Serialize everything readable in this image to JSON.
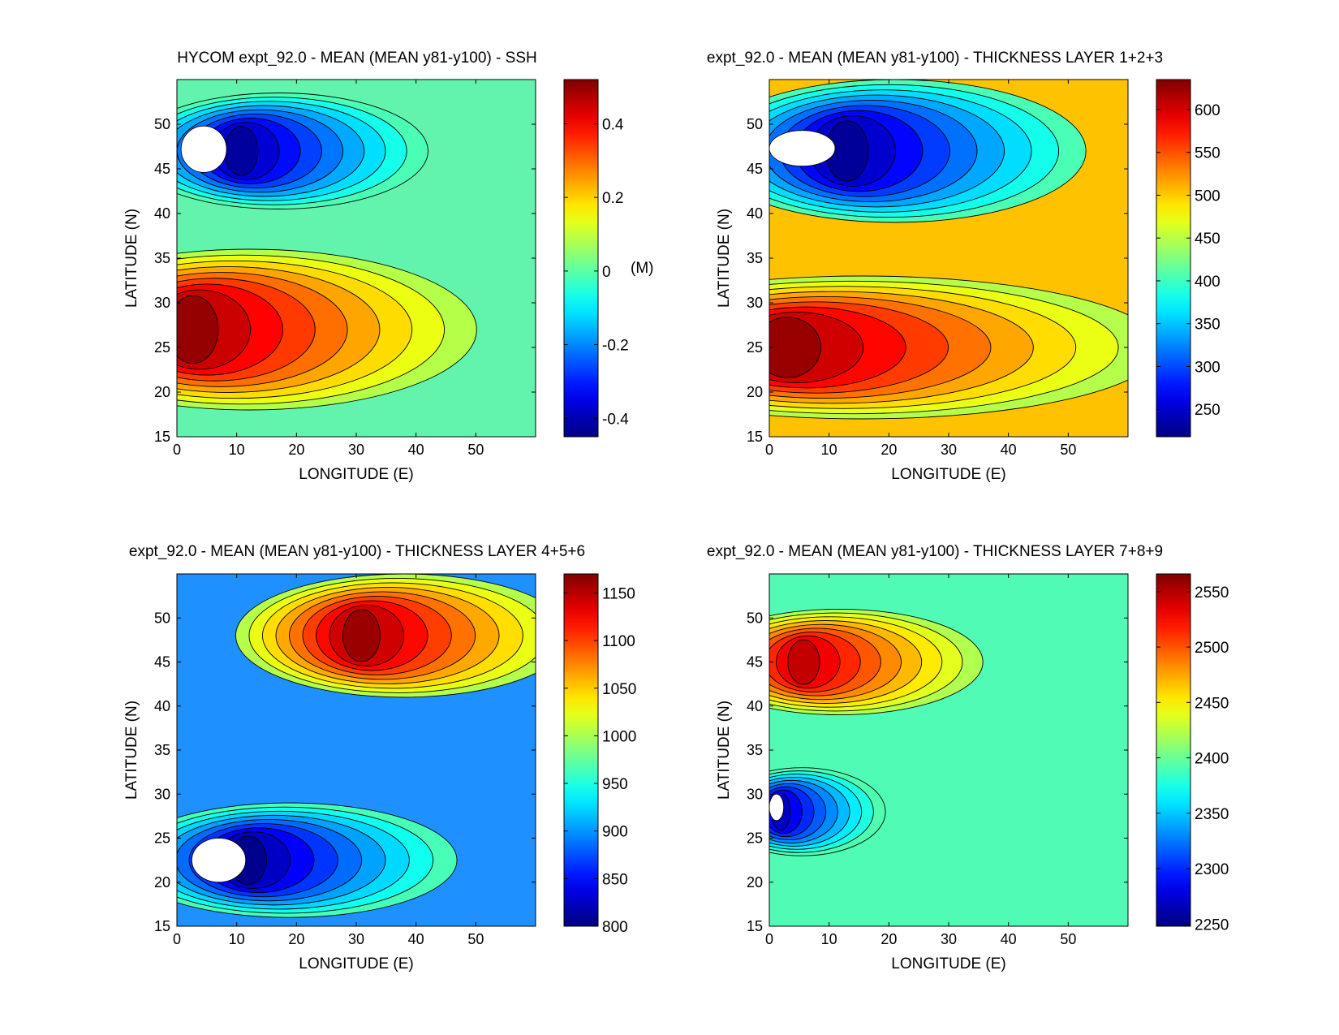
{
  "figure": {
    "panels": [
      {
        "id": "ssh",
        "chart_data": {
          "type": "heatmap",
          "title": "HYCOM expt_92.0 - MEAN (MEAN y81-y100) - SSH",
          "xlabel": "LONGITUDE (E)",
          "ylabel": "LATITUDE (N)",
          "xlim": [
            0,
            60
          ],
          "ylim": [
            15,
            55
          ],
          "xticks": [
            0,
            10,
            20,
            30,
            40,
            50
          ],
          "yticks": [
            15,
            20,
            25,
            30,
            35,
            40,
            45,
            50
          ],
          "colorbar": {
            "min": -0.45,
            "max": 0.52,
            "ticks": [
              -0.4,
              -0.2,
              0,
              0.2,
              0.4
            ],
            "unit_label": "(M)"
          },
          "fill_color": "#62f4ad",
          "features": [
            {
              "kind": "low",
              "center": [
                10,
                47
              ],
              "peak": -0.42,
              "rx": 25,
              "ry": 6.5
            },
            {
              "kind": "high",
              "center": [
                1.5,
                27
              ],
              "peak": 0.5,
              "rx": 38,
              "ry": 9
            },
            {
              "kind": "land",
              "center": [
                4.5,
                47.2
              ],
              "rx": 3.8,
              "ry": 2.6
            }
          ]
        }
      },
      {
        "id": "layer123",
        "chart_data": {
          "type": "heatmap",
          "title": "expt_92.0 - MEAN (MEAN y81-y100) - THICKNESS LAYER 1+2+3",
          "xlabel": "LONGITUDE (E)",
          "ylabel": "LATITUDE (N)",
          "xlim": [
            0,
            60
          ],
          "ylim": [
            15,
            55
          ],
          "xticks": [
            0,
            10,
            20,
            30,
            40,
            50
          ],
          "yticks": [
            15,
            20,
            25,
            30,
            35,
            40,
            45,
            50
          ],
          "colorbar": {
            "min": 218,
            "max": 635,
            "ticks": [
              250,
              300,
              350,
              400,
              450,
              500,
              550,
              600
            ],
            "unit_label": ""
          },
          "fill_color": "#ffc200",
          "features": [
            {
              "kind": "low",
              "center": [
                12,
                47
              ],
              "peak": 228,
              "rx": 32,
              "ry": 8
            },
            {
              "kind": "high",
              "center": [
                1.5,
                25
              ],
              "peak": 625,
              "rx": 50,
              "ry": 8
            },
            {
              "kind": "land",
              "center": [
                5.5,
                47.3
              ],
              "rx": 5.5,
              "ry": 2.0
            }
          ]
        }
      },
      {
        "id": "layer456",
        "chart_data": {
          "type": "heatmap",
          "title": "expt_92.0 - MEAN (MEAN y81-y100) - THICKNESS LAYER 4+5+6",
          "xlabel": "LONGITUDE (E)",
          "ylabel": "LATITUDE (N)",
          "xlim": [
            0,
            60
          ],
          "ylim": [
            15,
            55
          ],
          "xticks": [
            0,
            10,
            20,
            30,
            40,
            50
          ],
          "yticks": [
            15,
            20,
            25,
            30,
            35,
            40,
            45,
            50
          ],
          "colorbar": {
            "min": 800,
            "max": 1170,
            "ticks": [
              800,
              850,
              900,
              950,
              1000,
              1050,
              1100,
              1150
            ],
            "unit_label": ""
          },
          "fill_color": "#1e90ff",
          "features": [
            {
              "kind": "high",
              "center": [
                30,
                48
              ],
              "peak": 1160,
              "rx": 28,
              "ry": 7
            },
            {
              "kind": "low",
              "center": [
                11,
                22.5
              ],
              "peak": 805,
              "rx": 28,
              "ry": 6.5
            },
            {
              "kind": "land",
              "center": [
                7,
                22.5
              ],
              "rx": 4.5,
              "ry": 2.5
            }
          ]
        }
      },
      {
        "id": "layer789",
        "chart_data": {
          "type": "heatmap",
          "title": "expt_92.0 - MEAN (MEAN y81-y100) - THICKNESS LAYER 7+8+9",
          "xlabel": "LONGITUDE (E)",
          "ylabel": "LATITUDE (N)",
          "xlim": [
            0,
            60
          ],
          "ylim": [
            15,
            55
          ],
          "xticks": [
            0,
            10,
            20,
            30,
            40,
            50
          ],
          "yticks": [
            15,
            20,
            25,
            30,
            35,
            40,
            45,
            50
          ],
          "colorbar": {
            "min": 2248,
            "max": 2566,
            "ticks": [
              2250,
              2300,
              2350,
              2400,
              2450,
              2500,
              2550
            ],
            "unit_label": ""
          },
          "fill_color": "#50fbb5",
          "features": [
            {
              "kind": "high",
              "center": [
                5,
                45
              ],
              "peak": 2545,
              "rx": 24,
              "ry": 6
            },
            {
              "kind": "low",
              "center": [
                1.5,
                28
              ],
              "peak": 2270,
              "rx": 14,
              "ry": 5
            },
            {
              "kind": "land",
              "center": [
                1.2,
                28.5
              ],
              "rx": 1.2,
              "ry": 1.5
            }
          ]
        }
      }
    ]
  }
}
